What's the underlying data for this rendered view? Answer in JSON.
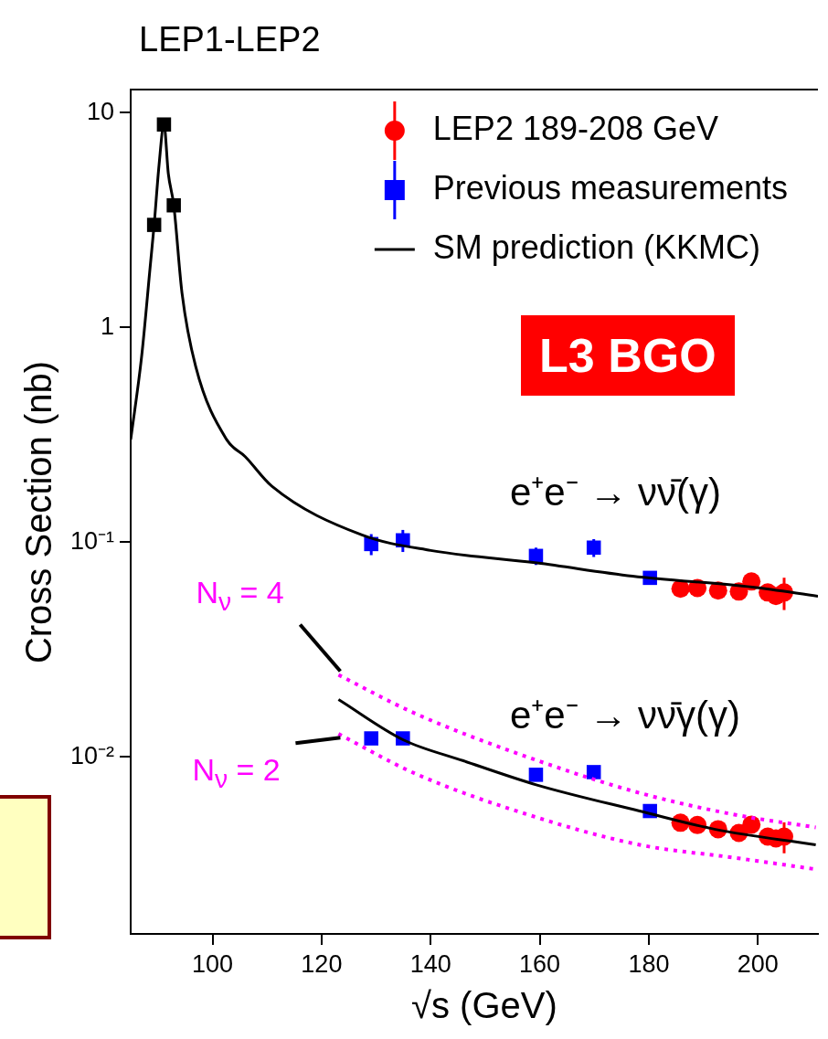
{
  "chart_data": {
    "type": "scatter",
    "title": "LEP1-LEP2",
    "xlabel": "√s (GeV)",
    "ylabel": "Cross Section (nb)",
    "log": "y",
    "xlim": [
      85,
      211
    ],
    "ylim": [
      0.0015,
      12.8
    ],
    "xticks": [
      100,
      120,
      140,
      160,
      180,
      200
    ],
    "yticks": [
      {
        "value": 0.01,
        "label": "10⁻²"
      },
      {
        "value": 0.1,
        "label": "10⁻¹"
      },
      {
        "value": 1,
        "label": "1"
      },
      {
        "value": 10,
        "label": "10"
      }
    ],
    "grid": false,
    "legend": "top right",
    "annotations": [
      "e⁺e⁻ → νν̄(γ)",
      "e⁺e⁻ → νν̄γ(γ)",
      {
        "text": "N$_{ν}$ = 4",
        "x": 123.1,
        "y": 0.0241
      },
      {
        "text": "N$_{ν}$ = 2",
        "x": 123.1,
        "y": 0.0128
      },
      "L3 BGO"
    ],
    "series": [
      {
        "type": "line",
        "name": "SM prediction (KKMC)",
        "color": "#000000",
        "marker": "none",
        "line_style": "solid",
        "x": [
          85,
          87,
          88.6,
          89.3,
          90.2,
          91.1,
          91.9,
          92.9,
          94.4,
          96.9,
          102.6,
          106,
          110.9,
          127.4,
          140,
          159.5,
          177,
          199,
          211
        ],
        "values": [
          0.3,
          0.73,
          1.95,
          3.0,
          5.7,
          8.8,
          5.2,
          3.7,
          1.45,
          0.66,
          0.3,
          0.25,
          0.182,
          0.108,
          0.0915,
          0.08,
          0.0695,
          0.0617,
          0.056
        ]
      },
      {
        "type": "line",
        "color": "#000000",
        "marker": "none",
        "line_style": "solid",
        "x": [
          123.1,
          135,
          146,
          159.5,
          178.3,
          192.2,
          210.6
        ],
        "values": [
          0.0185,
          0.012,
          0.0096,
          0.0074,
          0.0056,
          0.0046,
          0.0039
        ]
      },
      {
        "type": "line",
        "color": "#ff00ff",
        "marker": "none",
        "line_style": "dotted",
        "x": [
          123.1,
          137,
          157.7,
          178.3,
          195.5,
          210.6
        ],
        "values": [
          0.0241,
          0.016,
          0.01,
          0.0068,
          0.0054,
          0.0047
        ]
      },
      {
        "type": "line",
        "color": "#ff00ff",
        "marker": "none",
        "line_style": "dotted",
        "x": [
          123.1,
          137,
          157.7,
          178.3,
          195.5,
          210.6
        ],
        "values": [
          0.0128,
          0.0084,
          0.0054,
          0.0039,
          0.0034,
          0.003
        ]
      },
      {
        "color": "#000000",
        "marker": "square",
        "x": [
          89.3,
          91.1,
          92.9
        ],
        "values": [
          3.0,
          8.8,
          3.7
        ]
      },
      {
        "name": "Previous measurements",
        "color": "#0000ff",
        "marker": "square",
        "x": [
          129.1,
          134.9,
          159.3,
          169.9,
          180.2
        ],
        "values": [
          0.098,
          0.102,
          0.0863,
          0.0943,
          0.0682
        ],
        "errors": [
          0.011,
          0.012,
          0.008,
          0.009,
          null
        ]
      },
      {
        "color": "#0000ff",
        "marker": "square",
        "x": [
          129.1,
          134.9,
          159.3,
          169.9,
          180.2
        ],
        "values": [
          0.0122,
          0.0122,
          0.00826,
          0.0085,
          0.0056
        ]
      },
      {
        "name": "LEP2 189-208 GeV",
        "color": "#ff0000",
        "marker": "circle",
        "x": [
          185.8,
          188.9,
          192.7,
          196.5,
          198.8,
          201.8,
          203.3,
          204.8
        ],
        "values": [
          0.0607,
          0.0612,
          0.0595,
          0.0589,
          0.0656,
          0.0583,
          0.0561,
          0.0583
        ],
        "errors": [
          null,
          null,
          null,
          null,
          null,
          null,
          null,
          0.01
        ]
      },
      {
        "color": "#ff0000",
        "marker": "circle",
        "x": [
          185.8,
          188.9,
          192.7,
          196.5,
          198.8,
          201.8,
          203.3,
          204.8
        ],
        "values": [
          0.00494,
          0.00482,
          0.00461,
          0.00443,
          0.00484,
          0.00426,
          0.00418,
          0.00426
        ],
        "errors": [
          null,
          null,
          null,
          null,
          null,
          null,
          null,
          0.0007
        ]
      }
    ]
  }
}
